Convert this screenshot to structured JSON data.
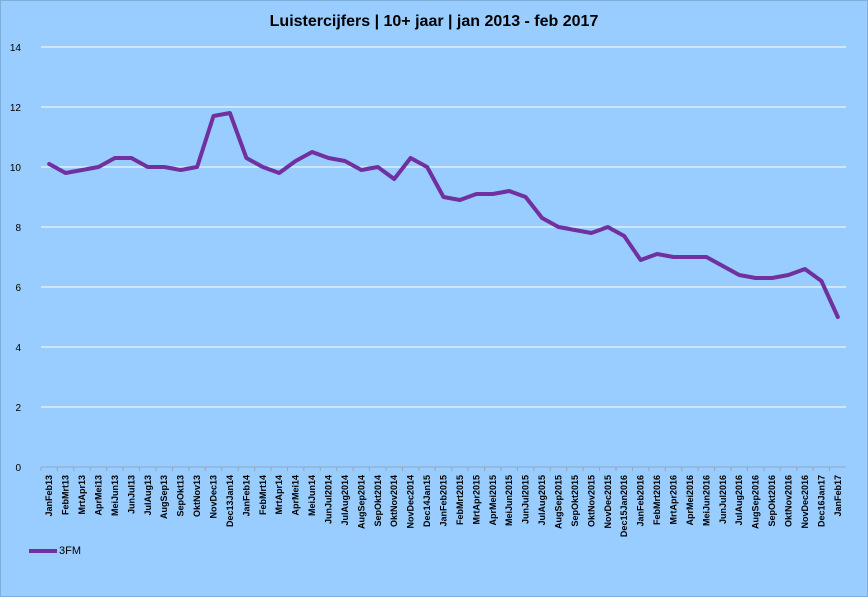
{
  "chart_data": {
    "type": "line",
    "title": "Luistercijfers | 10+ jaar | jan 2013 - feb 2017",
    "xlabel": "",
    "ylabel": "",
    "ylim": [
      0,
      14
    ],
    "yticks": [
      0,
      2,
      4,
      6,
      8,
      10,
      12,
      14
    ],
    "grid": true,
    "legend_position": "bottom-left",
    "categories": [
      "JanFeb13",
      "FebMrt13",
      "MrtApr13",
      "AprMei13",
      "MeiJun13",
      "JunJul13",
      "JulAug13",
      "AugSep13",
      "SepOkt13",
      "OktNov13",
      "NovDec13",
      "Dec13Jan14",
      "JanFeb14",
      "FebMrt14",
      "MrtApr14",
      "AprMei14",
      "MeiJun14",
      "JunJul2014",
      "JulAug2014",
      "AugSep2014",
      "SepOkt2014",
      "OktNov2014",
      "NovDec2014",
      "Dec14Jan15",
      "JanFeb2015",
      "FebMrt2015",
      "MrtApr2015",
      "AprMei2015",
      "MeiJun2015",
      "JunJul2015",
      "JulAug2015",
      "AugSep2015",
      "SepOkt2015",
      "OktNov2015",
      "NovDec2015",
      "Dec15Jan2016",
      "JanFeb2016",
      "FebMrt2016",
      "MrtApr2016",
      "AprMei2016",
      "MeiJun2016",
      "JunJul2016",
      "JulAug2016",
      "AugSep2016",
      "SepOkt2016",
      "OktNov2016",
      "NovDec2016",
      "Dec16Jan17",
      "JanFeb17"
    ],
    "series": [
      {
        "name": "3FM",
        "color": "#7030a0",
        "values": [
          10.1,
          9.8,
          9.9,
          10.0,
          10.3,
          10.3,
          10.0,
          10.0,
          9.9,
          10.0,
          11.7,
          11.8,
          10.3,
          10.0,
          9.8,
          10.2,
          10.5,
          10.3,
          10.2,
          9.9,
          10.0,
          9.6,
          10.3,
          10.0,
          9.0,
          8.9,
          9.1,
          9.1,
          9.2,
          9.0,
          8.3,
          8.0,
          7.9,
          7.8,
          8.0,
          7.7,
          6.9,
          7.1,
          7.0,
          7.0,
          7.0,
          6.7,
          6.4,
          6.3,
          6.3,
          6.4,
          6.6,
          6.2,
          5.0
        ]
      }
    ]
  }
}
